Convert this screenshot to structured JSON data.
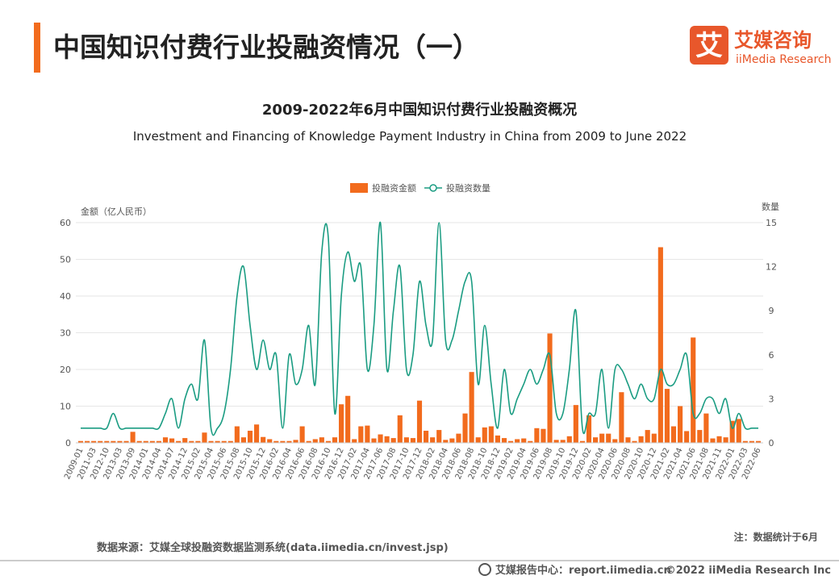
{
  "header": {
    "title": "中国知识付费行业投融资情况（一）",
    "logo_mark": "艾",
    "logo_name": "艾媒咨询",
    "logo_en": "iiMedia Research"
  },
  "chart_data": {
    "type": "bar-line",
    "title": "2009-2022年6月中国知识付费行业投融资概况",
    "subtitle": "Investment and Financing of Knowledge Payment Industry in China from 2009 to June 2022",
    "y_label": "金额（亿人民币）",
    "y2_label": "数量",
    "categories": [
      "2009-01",
      null,
      "2011-03",
      null,
      "2012-10",
      null,
      "2013-03",
      null,
      "2013-09",
      null,
      "2014-01",
      null,
      "2014-04",
      null,
      "2014-07",
      null,
      "2014-12",
      null,
      "2015-02",
      null,
      "2015-04",
      null,
      "2015-06",
      null,
      "2015-08",
      null,
      "2015-10",
      null,
      "2015-12",
      null,
      "2016-02",
      null,
      "2016-04",
      null,
      "2016-06",
      null,
      "2016-08",
      null,
      "2016-10",
      null,
      "2016-12",
      null,
      "2017-02",
      null,
      "2017-04",
      null,
      "2017-06",
      null,
      "2017-08",
      null,
      "2017-10",
      null,
      "2017-12",
      null,
      "2018-02",
      null,
      "2018-04",
      null,
      "2018-06",
      null,
      "2018-08",
      null,
      "2018-10",
      null,
      "2018-12",
      null,
      "2019-02",
      null,
      "2019-04",
      null,
      "2019-06",
      null,
      "2019-08",
      null,
      "2019-10",
      null,
      "2019-12",
      null,
      "2020-02",
      null,
      "2020-04",
      null,
      "2020-06",
      null,
      "2020-08",
      null,
      "2020-10",
      null,
      "2020-12",
      null,
      "2021-02",
      null,
      "2021-04",
      null,
      "2021-06",
      null,
      "2021-08",
      null,
      "2021-11",
      null,
      "2022-01",
      null,
      "2022-03",
      null,
      "2022-06"
    ],
    "series": [
      {
        "name": "投融资金额",
        "color": "#f26b1d",
        "values": [
          0.5,
          0.5,
          0.5,
          0.5,
          0.5,
          0.5,
          0.5,
          0.5,
          3,
          0.5,
          0.5,
          0.5,
          0.5,
          1.5,
          1.2,
          0.5,
          1.3,
          0.5,
          0.5,
          2.8,
          0.5,
          0.5,
          0.5,
          0.5,
          4.5,
          1.5,
          3.3,
          5,
          1.6,
          1,
          0.5,
          0.5,
          0.5,
          0.8,
          4.5,
          0.5,
          1,
          1.5,
          0.5,
          1.5,
          10.5,
          12.8,
          1,
          4.5,
          4.7,
          1.2,
          2.3,
          1.8,
          1.3,
          7.5,
          1.5,
          1.3,
          11.5,
          3.3,
          1.5,
          3.5,
          0.8,
          1.2,
          2.5,
          8,
          19.3,
          1.5,
          4.2,
          4.5,
          2,
          1.3,
          0.5,
          1,
          1.2,
          0.5,
          4,
          3.8,
          29.8,
          0.8,
          0.8,
          1.8,
          10.3,
          0.5,
          7.5,
          1.5,
          2.5,
          2.5,
          1,
          13.8,
          1.5,
          0.5,
          1.8,
          3.5,
          2.5,
          53.3,
          14.7,
          4.5,
          10,
          3.2,
          28.7,
          3.5,
          8,
          1.2,
          1.8,
          1.5,
          6,
          6.5,
          0.5,
          0.5,
          0.5
        ]
      },
      {
        "name": "投融资数量",
        "color": "#1a9c82",
        "axis": "y2",
        "values": [
          1,
          1,
          1,
          1,
          1,
          2,
          1,
          1,
          1,
          1,
          1,
          1,
          1,
          2,
          3,
          1,
          3,
          4,
          3,
          7,
          1,
          1,
          2,
          5,
          10,
          12,
          8,
          5,
          7,
          5,
          6,
          1,
          6,
          4,
          5,
          8,
          4,
          13,
          14,
          2,
          10,
          13,
          11,
          12,
          5,
          8,
          15,
          5,
          9,
          12,
          5,
          6,
          11,
          8,
          7,
          15,
          7,
          7,
          9,
          11,
          11,
          4,
          8,
          4,
          1,
          5,
          2,
          3,
          4,
          5,
          4,
          5,
          6,
          2,
          2,
          5,
          9,
          1,
          2,
          2,
          5,
          1,
          5,
          5,
          4,
          3,
          4,
          3,
          3,
          5,
          4,
          4,
          5,
          6,
          2,
          2,
          3,
          3,
          2,
          3,
          1,
          2,
          1,
          1,
          1
        ]
      }
    ],
    "ylim": [
      0,
      60
    ],
    "yticks": [
      0,
      10,
      20,
      30,
      40,
      50,
      60
    ],
    "y2lim": [
      0,
      15
    ],
    "y2ticks": [
      0,
      3,
      6,
      9,
      12,
      15
    ],
    "legend": "top"
  },
  "footer": {
    "source": "数据来源：艾媒全球投融资数据监测系统(data.iimedia.cn/invest.jsp)",
    "note": "注：数据统计于6月",
    "center": "艾媒报告中心：report.iimedia.cn",
    "copyright": "©2022  iiMedia Research  Inc"
  }
}
